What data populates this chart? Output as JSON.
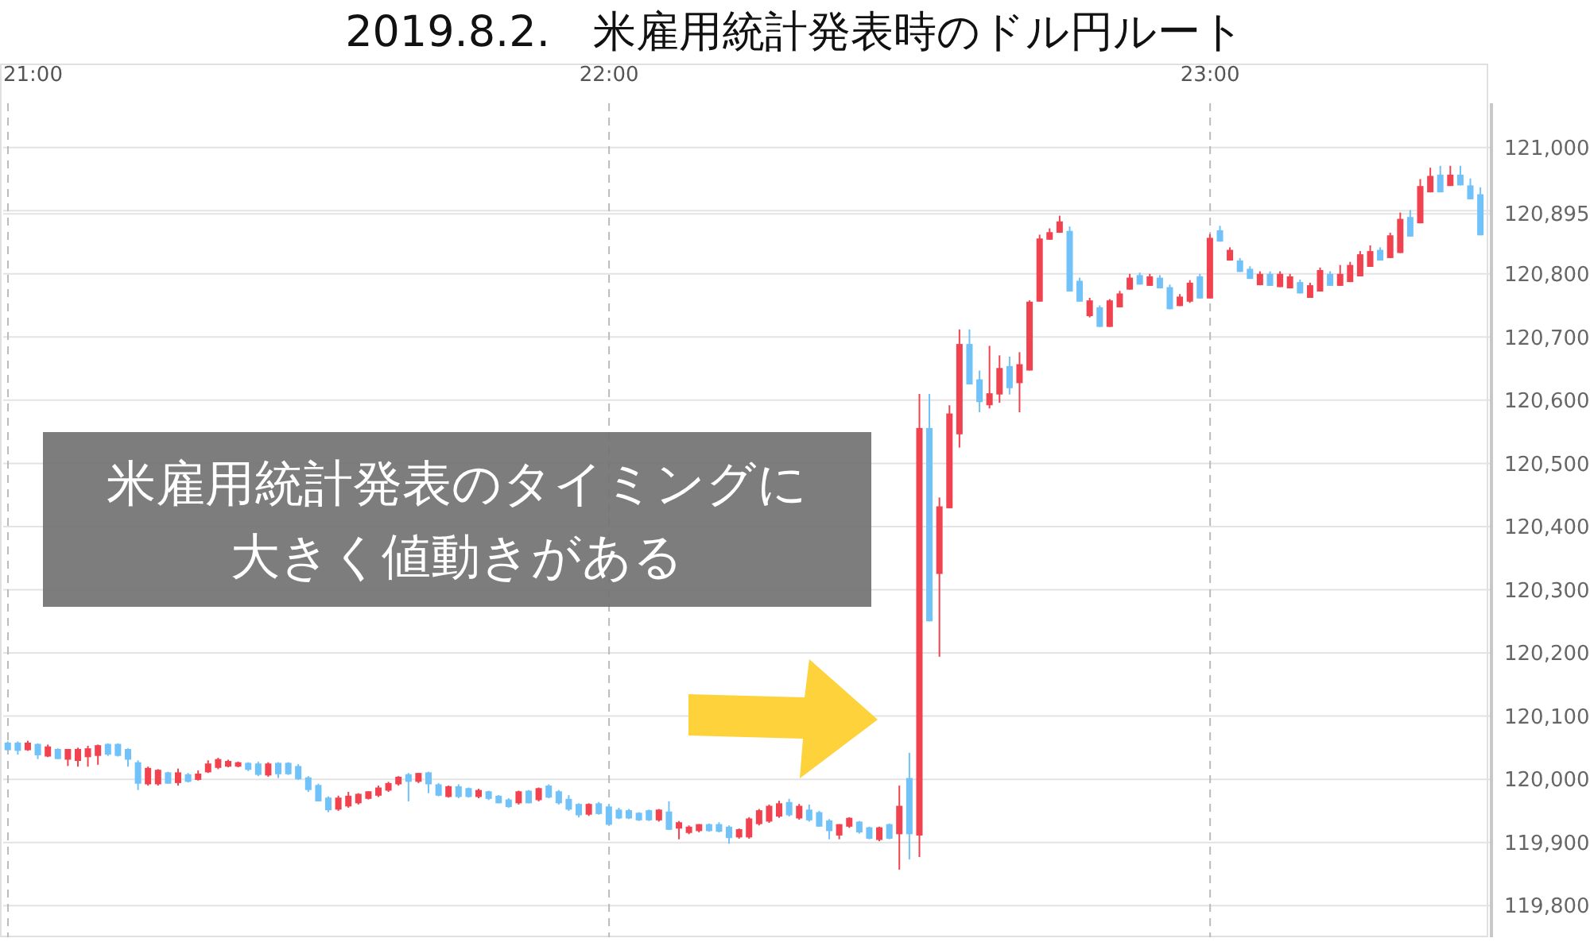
{
  "chart_data": {
    "type": "candlestick",
    "title": "2019.8.2.　米雇用統計発表時のドル円ルート",
    "annotations": [
      "米雇用統計発表のタイミングに大きく値動きがある"
    ],
    "colors": [
      "#70c2f8",
      "#70c2f8",
      "#f0434f",
      "#70c2f8",
      "#f0434f",
      "#70c2f8",
      "#f0434f",
      "#f0434f",
      "#f0434f",
      "#f0434f",
      "#70c2f8",
      "#70c2f8",
      "#70c2f8",
      "#70c2f8",
      "#f0434f",
      "#f0434f",
      "#70c2f8",
      "#f0434f",
      "#70c2f8",
      "#f0434f",
      "#f0434f",
      "#f0434f",
      "#f0434f",
      "#f0434f",
      "#70c2f8",
      "#70c2f8",
      "#f0434f",
      "#70c2f8",
      "#70c2f8",
      "#70c2f8",
      "#70c2f8",
      "#70c2f8",
      "#70c2f8",
      "#f0434f",
      "#f0434f",
      "#f0434f",
      "#f0434f",
      "#f0434f",
      "#f0434f",
      "#f0434f",
      "#70c2f8",
      "#f0434f",
      "#70c2f8",
      "#70c2f8",
      "#f0434f",
      "#70c2f8",
      "#70c2f8",
      "#f0434f",
      "#70c2f8",
      "#70c2f8",
      "#70c2f8",
      "#f0434f",
      "#70c2f8",
      "#f0434f",
      "#70c2f8",
      "#70c2f8",
      "#70c2f8",
      "#70c2f8",
      "#f0434f",
      "#70c2f8",
      "#70c2f8",
      "#70c2f8",
      "#70c2f8",
      "#70c2f8",
      "#70c2f8",
      "#f0434f",
      "#70c2f8",
      "#f0434f",
      "#f0434f",
      "#f0434f",
      "#70c2f8",
      "#70c2f8",
      "#70c2f8",
      "#f0434f",
      "#f0434f",
      "#f0434f",
      "#f0434f",
      "#f0434f",
      "#70c2f8",
      "#f0434f",
      "#70c2f8",
      "#70c2f8",
      "#70c2f8",
      "#f0434f",
      "#f0434f",
      "#70c2f8",
      "#70c2f8",
      "#f0434f",
      "#70c2f8",
      "#f0434f",
      "#70c2f8",
      "#f0434f",
      "#70c2f8",
      "#f0434f",
      "#f0434f",
      "#f0434f",
      "#70c2f8",
      "#70c2f8",
      "#f0434f",
      "#f0434f",
      "#70c2f8",
      "#f0434f",
      "#f0434f",
      "#f0434f",
      "#f0434f",
      "#f0434f",
      "#70c2f8",
      "#70c2f8",
      "#f0434f",
      "#70c2f8",
      "#f0434f",
      "#f0434f",
      "#f0434f",
      "#70c2f8",
      "#f0434f",
      "#70c2f8",
      "#70c2f8",
      "#f0434f",
      "#f0434f",
      "#70c2f8",
      "#f0434f",
      "#70c2f8",
      "#f0434f",
      "#70c2f8",
      "#70c2f8",
      "#f0434f",
      "#70c2f8",
      "#f0434f",
      "#f0434f",
      "#70c2f8",
      "#f0434f",
      "#f0434f",
      "#70c2f8",
      "#f0434f",
      "#f0434f",
      "#f0434f",
      "#f0434f",
      "#70c2f8",
      "#f0434f",
      "#f0434f",
      "#70c2f8",
      "#f0434f",
      "#f0434f",
      "#70c2f8",
      "#f0434f",
      "#70c2f8",
      "#70c2f8",
      "#70c2f8"
    ],
    "x": [
      21,
      21.0167,
      21.0333,
      21.05,
      21.0667,
      21.0833,
      21.1,
      21.1167,
      21.1333,
      21.15,
      21.1667,
      21.1833,
      21.2,
      21.2167,
      21.2333,
      21.25,
      21.2667,
      21.2833,
      21.3,
      21.3167,
      21.3333,
      21.35,
      21.3667,
      21.3833,
      21.4,
      21.4167,
      21.4333,
      21.45,
      21.4667,
      21.4833,
      21.5,
      21.5167,
      21.5333,
      21.55,
      21.5667,
      21.5833,
      21.6,
      21.6167,
      21.6333,
      21.65,
      21.6667,
      21.6833,
      21.7,
      21.7167,
      21.7333,
      21.75,
      21.7667,
      21.7833,
      21.8,
      21.8167,
      21.8333,
      21.85,
      21.8667,
      21.8833,
      21.9,
      21.9167,
      21.9333,
      21.95,
      21.9667,
      21.9833,
      22,
      22.0167,
      22.0333,
      22.05,
      22.0667,
      22.0833,
      22.1,
      22.1167,
      22.1333,
      22.15,
      22.1667,
      22.1833,
      22.2,
      22.2167,
      22.2333,
      22.25,
      22.2667,
      22.2833,
      22.3,
      22.3167,
      22.3333,
      22.35,
      22.3667,
      22.3833,
      22.4,
      22.4167,
      22.4333,
      22.45,
      22.4667,
      22.4833,
      22.5,
      22.5167,
      22.5333,
      22.55,
      22.5667,
      22.5833,
      22.6,
      22.6167,
      22.6333,
      22.65,
      22.6667,
      22.6833,
      22.7,
      22.7167,
      22.7333,
      22.75,
      22.7667,
      22.7833,
      22.8,
      22.8167,
      22.8333,
      22.85,
      22.8667,
      22.8833,
      22.9,
      22.9167,
      22.9333,
      22.95,
      22.9667,
      22.9833,
      23,
      23.0167,
      23.0333,
      23.05,
      23.0667,
      23.0833,
      23.1,
      23.1167,
      23.1333,
      23.15,
      23.1667,
      23.1833,
      23.2,
      23.2167,
      23.2333,
      23.25,
      23.2667,
      23.2833,
      23.3,
      23.3167,
      23.3333,
      23.35,
      23.3667,
      23.3833,
      23.4,
      23.4167,
      23.4333,
      23.45
    ],
    "ohlc": [
      [
        120058,
        120060,
        120046,
        120046
      ],
      [
        120058,
        120060,
        120039,
        120045
      ],
      [
        120046,
        120061,
        120045,
        120058
      ],
      [
        120056,
        120057,
        120032,
        120038
      ],
      [
        120036,
        120055,
        120035,
        120052
      ],
      [
        120048,
        120049,
        120032,
        120032
      ],
      [
        120031,
        120048,
        120021,
        120048
      ],
      [
        120029,
        120050,
        120020,
        120048
      ],
      [
        120035,
        120053,
        120020,
        120049
      ],
      [
        120037,
        120055,
        120023,
        120054
      ],
      [
        120056,
        120057,
        120037,
        120039
      ],
      [
        120056,
        120057,
        120036,
        120037
      ],
      [
        120048,
        120049,
        120020,
        120031
      ],
      [
        120027,
        120030,
        119983,
        119993
      ],
      [
        119992,
        120020,
        119990,
        120018
      ],
      [
        119992,
        120016,
        119990,
        120015
      ],
      [
        120011,
        120012,
        119993,
        119993
      ],
      [
        119994,
        120017,
        119990,
        120011
      ],
      [
        120008,
        120010,
        119995,
        119996
      ],
      [
        119999,
        120014,
        119998,
        120009
      ],
      [
        120011,
        120030,
        120010,
        120025
      ],
      [
        120018,
        120034,
        120016,
        120032
      ],
      [
        120020,
        120031,
        120019,
        120029
      ],
      [
        120020,
        120028,
        120019,
        120027
      ],
      [
        120026,
        120027,
        120013,
        120015
      ],
      [
        120025,
        120028,
        120005,
        120007
      ],
      [
        120006,
        120027,
        120004,
        120025
      ],
      [
        120026,
        120027,
        120002,
        120008
      ],
      [
        120026,
        120027,
        120007,
        120008
      ],
      [
        120021,
        120024,
        119999,
        120000
      ],
      [
        120003,
        120005,
        119980,
        119983
      ],
      [
        119991,
        119993,
        119965,
        119965
      ],
      [
        119971,
        119973,
        119948,
        119951
      ],
      [
        119952,
        119974,
        119950,
        119971
      ],
      [
        119957,
        119980,
        119955,
        119974
      ],
      [
        119962,
        119978,
        119960,
        119977
      ],
      [
        119969,
        119981,
        119968,
        119981
      ],
      [
        119974,
        119990,
        119972,
        119987
      ],
      [
        119982,
        119996,
        119980,
        119994
      ],
      [
        119992,
        120005,
        119990,
        120004
      ],
      [
        120008,
        120010,
        119965,
        119996
      ],
      [
        119996,
        120010,
        119994,
        120010
      ],
      [
        120011,
        120012,
        119978,
        119992
      ],
      [
        119992,
        119994,
        119973,
        119974
      ],
      [
        119972,
        119990,
        119971,
        119989
      ],
      [
        119989,
        119992,
        119970,
        119972
      ],
      [
        119986,
        119987,
        119971,
        119972
      ],
      [
        119972,
        119985,
        119970,
        119983
      ],
      [
        119981,
        119982,
        119967,
        119969
      ],
      [
        119974,
        119975,
        119962,
        119962
      ],
      [
        119968,
        119970,
        119955,
        119956
      ],
      [
        119962,
        119982,
        119960,
        119981
      ],
      [
        119982,
        119983,
        119962,
        119962
      ],
      [
        119967,
        119987,
        119965,
        119986
      ],
      [
        119990,
        119992,
        119970,
        119971
      ],
      [
        119981,
        119983,
        119960,
        119962
      ],
      [
        119969,
        119975,
        119950,
        119952
      ],
      [
        119961,
        119962,
        119940,
        119943
      ],
      [
        119944,
        119962,
        119942,
        119961
      ],
      [
        119962,
        119964,
        119944,
        119945
      ],
      [
        119957,
        119960,
        119928,
        119928
      ],
      [
        119952,
        119955,
        119937,
        119938
      ],
      [
        119951,
        119953,
        119937,
        119938
      ],
      [
        119947,
        119948,
        119934,
        119935
      ],
      [
        119951,
        119952,
        119934,
        119935
      ],
      [
        119935,
        119953,
        119933,
        119952
      ],
      [
        119949,
        119965,
        119920,
        119920
      ],
      [
        119922,
        119934,
        119905,
        119932
      ],
      [
        119915,
        119927,
        119913,
        119925
      ],
      [
        119918,
        119929,
        119916,
        119929
      ],
      [
        119929,
        119930,
        119917,
        119918
      ],
      [
        119929,
        119932,
        119916,
        119917
      ],
      [
        119925,
        119927,
        119898,
        119907
      ],
      [
        119908,
        119922,
        119906,
        119921
      ],
      [
        119908,
        119940,
        119906,
        119938
      ],
      [
        119929,
        119953,
        119927,
        119951
      ],
      [
        119933,
        119960,
        119931,
        119958
      ],
      [
        119941,
        119966,
        119939,
        119962
      ],
      [
        119964,
        119969,
        119941,
        119943
      ],
      [
        119938,
        119961,
        119936,
        119958
      ],
      [
        119952,
        119960,
        119933,
        119935
      ],
      [
        119948,
        119950,
        119925,
        119925
      ],
      [
        119935,
        119937,
        119905,
        119918
      ],
      [
        119911,
        119929,
        119905,
        119929
      ],
      [
        119925,
        119940,
        119923,
        119939
      ],
      [
        119933,
        119934,
        119914,
        119916
      ],
      [
        119924,
        119925,
        119905,
        119906
      ],
      [
        119904,
        119925,
        119902,
        119924
      ],
      [
        119929,
        119930,
        119905,
        119906
      ],
      [
        119913,
        119990,
        119857,
        119958
      ],
      [
        120002,
        120042,
        119873,
        119913
      ],
      [
        119911,
        120610,
        119877,
        120556
      ],
      [
        120556,
        120610,
        120250,
        120250
      ],
      [
        120325,
        120446,
        120194,
        120432
      ],
      [
        120429,
        120592,
        120429,
        120579
      ],
      [
        120546,
        120712,
        120525,
        120689
      ],
      [
        120689,
        120712,
        120625,
        120625
      ],
      [
        120633,
        120647,
        120581,
        120597
      ],
      [
        120592,
        120686,
        120587,
        120611
      ],
      [
        120609,
        120671,
        120596,
        120651
      ],
      [
        120654,
        120669,
        120609,
        120619
      ],
      [
        120627,
        120676,
        120581,
        120657
      ],
      [
        120647,
        120758,
        120647,
        120756
      ],
      [
        120756,
        120862,
        120756,
        120856
      ],
      [
        120854,
        120872,
        120854,
        120866
      ],
      [
        120865,
        120892,
        120865,
        120883
      ],
      [
        120868,
        120875,
        120772,
        120772
      ],
      [
        120789,
        120794,
        120756,
        120756
      ],
      [
        120733,
        120762,
        120731,
        120758
      ],
      [
        120747,
        120750,
        120716,
        120716
      ],
      [
        120716,
        120760,
        120716,
        120758
      ],
      [
        120747,
        120773,
        120747,
        120769
      ],
      [
        120775,
        120800,
        120775,
        120794
      ],
      [
        120798,
        120802,
        120783,
        120783
      ],
      [
        120781,
        120800,
        120781,
        120796
      ],
      [
        120794,
        120798,
        120777,
        120777
      ],
      [
        120779,
        120783,
        120744,
        120744
      ],
      [
        120749,
        120768,
        120749,
        120764
      ],
      [
        120756,
        120790,
        120754,
        120786
      ],
      [
        120796,
        120800,
        120761,
        120761
      ],
      [
        120761,
        120863,
        120761,
        120857
      ],
      [
        120869,
        120876,
        120851,
        120851
      ],
      [
        120821,
        120842,
        120821,
        120838
      ],
      [
        120821,
        120825,
        120803,
        120803
      ],
      [
        120808,
        120812,
        120792,
        120792
      ],
      [
        120782,
        120804,
        120782,
        120800
      ],
      [
        120800,
        120804,
        120781,
        120781
      ],
      [
        120779,
        120804,
        120779,
        120800
      ],
      [
        120777,
        120800,
        120777,
        120796
      ],
      [
        120787,
        120791,
        120769,
        120769
      ],
      [
        120762,
        120786,
        120762,
        120782
      ],
      [
        120772,
        120810,
        120772,
        120806
      ],
      [
        120800,
        120804,
        120781,
        120781
      ],
      [
        120781,
        120814,
        120781,
        120800
      ],
      [
        120787,
        120819,
        120787,
        120814
      ],
      [
        120796,
        120836,
        120796,
        120831
      ],
      [
        120811,
        120845,
        120811,
        120836
      ],
      [
        120838,
        120842,
        120821,
        120821
      ],
      [
        120825,
        120865,
        120825,
        120861
      ],
      [
        120833,
        120897,
        120833,
        120887
      ],
      [
        120890,
        120901,
        120859,
        120859
      ],
      [
        120880,
        120950,
        120880,
        120939
      ],
      [
        120929,
        120968,
        120929,
        120955
      ],
      [
        120957,
        120971,
        120929,
        120929
      ],
      [
        120939,
        120971,
        120939,
        120957
      ],
      [
        120957,
        120971,
        120940,
        120940
      ],
      [
        120940,
        120951,
        120918,
        120918
      ],
      [
        120926,
        120937,
        120861,
        120861
      ]
    ],
    "xlim": [
      20.992,
      23.468
    ],
    "xticks": [
      {
        "value": 21,
        "label": "21:00"
      },
      {
        "value": 22,
        "label": "22:00"
      },
      {
        "value": 23,
        "label": "23:00"
      }
    ],
    "ylim": [
      119750,
      121070
    ],
    "yticks": [
      {
        "value": 119800,
        "label": "119,800"
      },
      {
        "value": 119900,
        "label": "119,900"
      },
      {
        "value": 120000,
        "label": "120,000"
      },
      {
        "value": 120100,
        "label": "120,100"
      },
      {
        "value": 120200,
        "label": "120,200"
      },
      {
        "value": 120300,
        "label": "120,300"
      },
      {
        "value": 120400,
        "label": "120,400"
      },
      {
        "value": 120500,
        "label": "120,500"
      },
      {
        "value": 120600,
        "label": "120,600"
      },
      {
        "value": 120700,
        "label": "120,700"
      },
      {
        "value": 120800,
        "label": "120,800"
      },
      {
        "value": 120895,
        "label": "120,895"
      },
      {
        "value": 120900,
        "label": null
      },
      {
        "value": 121000,
        "label": "121,000"
      }
    ],
    "grid": true
  }
}
